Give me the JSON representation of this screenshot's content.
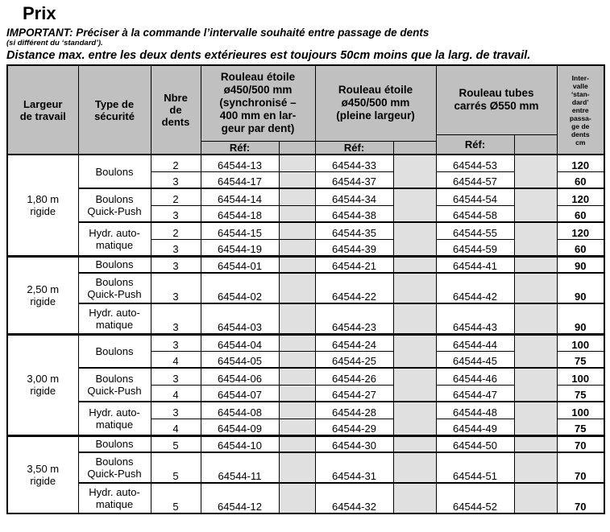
{
  "page": {
    "title": "Prix",
    "important_line": "IMPORTANT: Préciser à la commande l’intervalle souhaité entre passage de dents",
    "important_note": "(si différent du ‘standard’).",
    "distance_line": "Distance max. entre les deux dents extérieures est toujours 50cm moins que la larg. de travail."
  },
  "table": {
    "headers": {
      "largeur": "Largeur\nde travail",
      "type": "Type de\nsécurité",
      "dents": "Nbre\nde\ndents",
      "rouleau_sync": "Rouleau étoile\nø450/500 mm\n(synchronisé –\n400 mm en lar-\ngeur par dent)",
      "rouleau_pleine": "Rouleau étoile\nø450/500 mm\n(pleine largeur)",
      "rouleau_tubes": "Rouleau tubes\ncarrés Ø550 mm",
      "intervalle": "Inter-\nvalle\n‘stan-\ndard’\nentre\npassa-\nge de\ndents\ncm",
      "ref_label": "Réf:"
    },
    "groups": [
      {
        "largeur": "1,80 m\nrigide",
        "types": [
          {
            "label": "Boulons",
            "rows": [
              {
                "dents": "2",
                "ref_sync": "64544-13",
                "ref_pleine": "64544-33",
                "ref_tubes": "64544-53",
                "intervalle": "120"
              },
              {
                "dents": "3",
                "ref_sync": "64544-17",
                "ref_pleine": "64544-37",
                "ref_tubes": "64544-57",
                "intervalle": "60"
              }
            ]
          },
          {
            "label": "Boulons\nQuick-Push",
            "rows": [
              {
                "dents": "2",
                "ref_sync": "64544-14",
                "ref_pleine": "64544-34",
                "ref_tubes": "64544-54",
                "intervalle": "120"
              },
              {
                "dents": "3",
                "ref_sync": "64544-18",
                "ref_pleine": "64544-38",
                "ref_tubes": "64544-58",
                "intervalle": "60"
              }
            ]
          },
          {
            "label": "Hydr. auto-\nmatique",
            "rows": [
              {
                "dents": "2",
                "ref_sync": "64544-15",
                "ref_pleine": "64544-35",
                "ref_tubes": "64544-55",
                "intervalle": "120"
              },
              {
                "dents": "3",
                "ref_sync": "64544-19",
                "ref_pleine": "64544-39",
                "ref_tubes": "64544-59",
                "intervalle": "60"
              }
            ]
          }
        ]
      },
      {
        "largeur": "2,50 m\nrigide",
        "types": [
          {
            "label": "Boulons",
            "rows": [
              {
                "dents": "3",
                "ref_sync": "64544-01",
                "ref_pleine": "64544-21",
                "ref_tubes": "64544-41",
                "intervalle": "90"
              }
            ]
          },
          {
            "label": "Boulons\nQuick-Push",
            "rows": [
              {
                "dents": "3",
                "ref_sync": "64544-02",
                "ref_pleine": "64544-22",
                "ref_tubes": "64544-42",
                "intervalle": "90"
              }
            ]
          },
          {
            "label": "Hydr. auto-\nmatique",
            "rows": [
              {
                "dents": "3",
                "ref_sync": "64544-03",
                "ref_pleine": "64544-23",
                "ref_tubes": "64544-43",
                "intervalle": "90"
              }
            ]
          }
        ]
      },
      {
        "largeur": "3,00 m\nrigide",
        "types": [
          {
            "label": "Boulons",
            "rows": [
              {
                "dents": "3",
                "ref_sync": "64544-04",
                "ref_pleine": "64544-24",
                "ref_tubes": "64544-44",
                "intervalle": "100"
              },
              {
                "dents": "4",
                "ref_sync": "64544-05",
                "ref_pleine": "64544-25",
                "ref_tubes": "64544-45",
                "intervalle": "75"
              }
            ]
          },
          {
            "label": "Boulons\nQuick-Push",
            "rows": [
              {
                "dents": "3",
                "ref_sync": "64544-06",
                "ref_pleine": "64544-26",
                "ref_tubes": "64544-46",
                "intervalle": "100"
              },
              {
                "dents": "4",
                "ref_sync": "64544-07",
                "ref_pleine": "64544-27",
                "ref_tubes": "64544-47",
                "intervalle": "75"
              }
            ]
          },
          {
            "label": "Hydr. auto-\nmatique",
            "rows": [
              {
                "dents": "3",
                "ref_sync": "64544-08",
                "ref_pleine": "64544-28",
                "ref_tubes": "64544-48",
                "intervalle": "100"
              },
              {
                "dents": "4",
                "ref_sync": "64544-09",
                "ref_pleine": "64544-29",
                "ref_tubes": "64544-49",
                "intervalle": "75"
              }
            ]
          }
        ]
      },
      {
        "largeur": "3,50 m\nrigide",
        "types": [
          {
            "label": "Boulons",
            "rows": [
              {
                "dents": "5",
                "ref_sync": "64544-10",
                "ref_pleine": "64544-30",
                "ref_tubes": "64544-50",
                "intervalle": "70"
              }
            ]
          },
          {
            "label": "Boulons\nQuick-Push",
            "rows": [
              {
                "dents": "5",
                "ref_sync": "64544-11",
                "ref_pleine": "64544-31",
                "ref_tubes": "64544-51",
                "intervalle": "70"
              }
            ]
          },
          {
            "label": "Hydr. auto-\nmatique",
            "rows": [
              {
                "dents": "5",
                "ref_sync": "64544-12",
                "ref_pleine": "64544-32",
                "ref_tubes": "64544-52",
                "intervalle": "70"
              }
            ]
          }
        ]
      }
    ]
  }
}
